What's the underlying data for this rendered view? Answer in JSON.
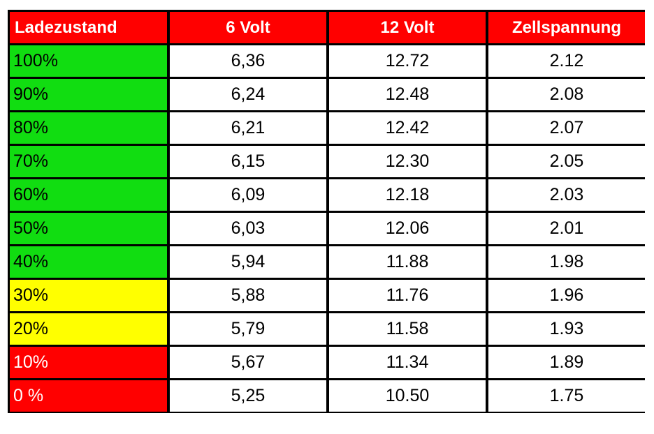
{
  "headers": [
    "Ladezustand",
    "6 Volt",
    "12 Volt",
    "Zellspannung"
  ],
  "colors": {
    "header_bg": "#ff0000",
    "green": "#11dd11",
    "yellow": "#ffff00",
    "red": "#ff0000",
    "border": "#000000"
  },
  "rows": [
    {
      "charge": "100%",
      "v6": "6,36",
      "v12": "12.72",
      "cell": "2.12",
      "status": "green"
    },
    {
      "charge": "90%",
      "v6": "6,24",
      "v12": "12.48",
      "cell": "2.08",
      "status": "green"
    },
    {
      "charge": "80%",
      "v6": "6,21",
      "v12": "12.42",
      "cell": "2.07",
      "status": "green"
    },
    {
      "charge": "70%",
      "v6": "6,15",
      "v12": "12.30",
      "cell": "2.05",
      "status": "green"
    },
    {
      "charge": "60%",
      "v6": "6,09",
      "v12": "12.18",
      "cell": "2.03",
      "status": "green"
    },
    {
      "charge": "50%",
      "v6": "6,03",
      "v12": "12.06",
      "cell": "2.01",
      "status": "green"
    },
    {
      "charge": "40%",
      "v6": "5,94",
      "v12": "11.88",
      "cell": "1.98",
      "status": "green"
    },
    {
      "charge": "30%",
      "v6": "5,88",
      "v12": "11.76",
      "cell": "1.96",
      "status": "yellow"
    },
    {
      "charge": "20%",
      "v6": "5,79",
      "v12": "11.58",
      "cell": "1.93",
      "status": "yellow"
    },
    {
      "charge": "10%",
      "v6": "5,67",
      "v12": "11.34",
      "cell": "1.89",
      "status": "red"
    },
    {
      "charge": "0 %",
      "v6": "5,25",
      "v12": "10.50",
      "cell": "1.75",
      "status": "red"
    }
  ]
}
